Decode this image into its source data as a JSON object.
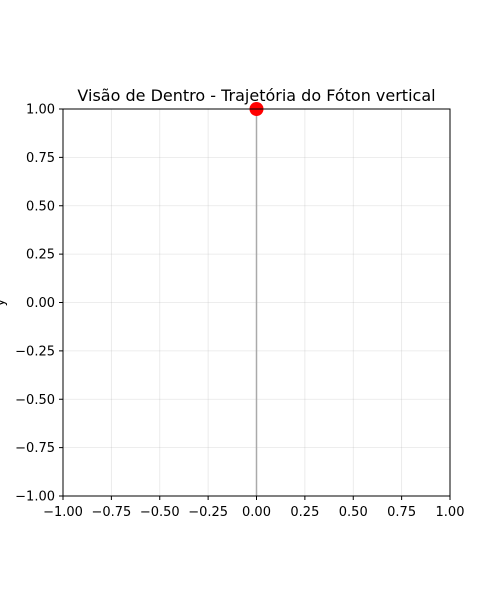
{
  "chart_data": {
    "type": "line",
    "title": "Visão de Dentro - Trajetória do Fóton vertical",
    "xlabel": "",
    "ylabel": "y",
    "xlim": [
      -1.0,
      1.0
    ],
    "ylim": [
      -1.0,
      1.0
    ],
    "grid": true,
    "x_ticks": [
      -1.0,
      -0.75,
      -0.5,
      -0.25,
      0.0,
      0.25,
      0.5,
      0.75,
      1.0
    ],
    "y_ticks": [
      -1.0,
      -0.75,
      -0.5,
      -0.25,
      0.0,
      0.25,
      0.5,
      0.75,
      1.0
    ],
    "x_tick_labels": [
      "−1.00",
      "−0.75",
      "−0.50",
      "−0.25",
      "0.00",
      "0.25",
      "0.50",
      "0.75",
      "1.00"
    ],
    "y_tick_labels": [
      "−1.00",
      "−0.75",
      "−0.50",
      "−0.25",
      "0.00",
      "0.25",
      "0.50",
      "0.75",
      "1.00"
    ],
    "series": [
      {
        "x": [
          0.0,
          0.0
        ],
        "y": [
          -1.0,
          1.0
        ],
        "color": "#aaaaaa"
      }
    ],
    "markers": [
      {
        "x": 0.0,
        "y": 1.0,
        "color": "#ff0000"
      }
    ]
  }
}
